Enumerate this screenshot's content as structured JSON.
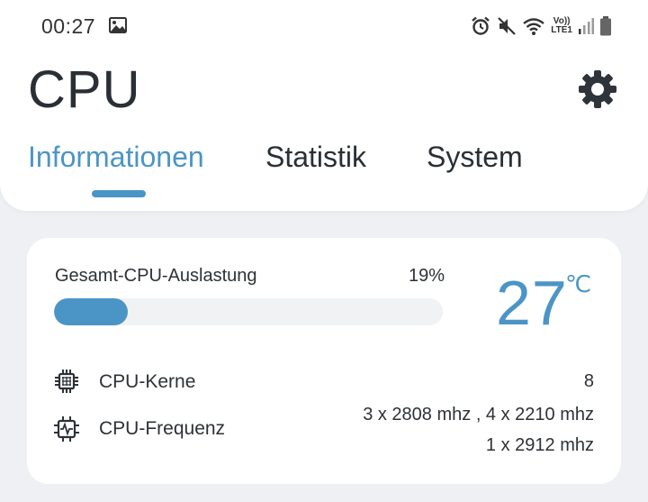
{
  "status_bar": {
    "time": "00:27",
    "icons": [
      "image-icon",
      "alarm-icon",
      "mute-icon",
      "wifi-icon",
      "volte-icon",
      "signal-icon",
      "battery-icon"
    ],
    "volte_top": "Vo))",
    "volte_bottom": "LTE1"
  },
  "app": {
    "title": "CPU",
    "settings_icon": "gear-icon"
  },
  "tabs": [
    {
      "label": "Informationen",
      "active": true
    },
    {
      "label": "Statistik",
      "active": false
    },
    {
      "label": "System",
      "active": false
    }
  ],
  "card": {
    "load_label": "Gesamt-CPU-Auslastung",
    "load_percent_text": "19%",
    "load_fraction": 0.19,
    "temperature": "27",
    "temperature_unit": "℃",
    "cores_label": "CPU-Kerne",
    "cores_value": "8",
    "cores_icon": "chip-icon",
    "freq_label": "CPU-Frequenz",
    "freq_line1": "3 x 2808 mhz , 4 x 2210 mhz",
    "freq_line2": "1 x 2912 mhz",
    "freq_icon": "chip-pulse-icon"
  },
  "colors": {
    "accent": "#4b95c6",
    "background": "#eef0f3",
    "card": "#ffffff",
    "text": "#2d3137"
  }
}
